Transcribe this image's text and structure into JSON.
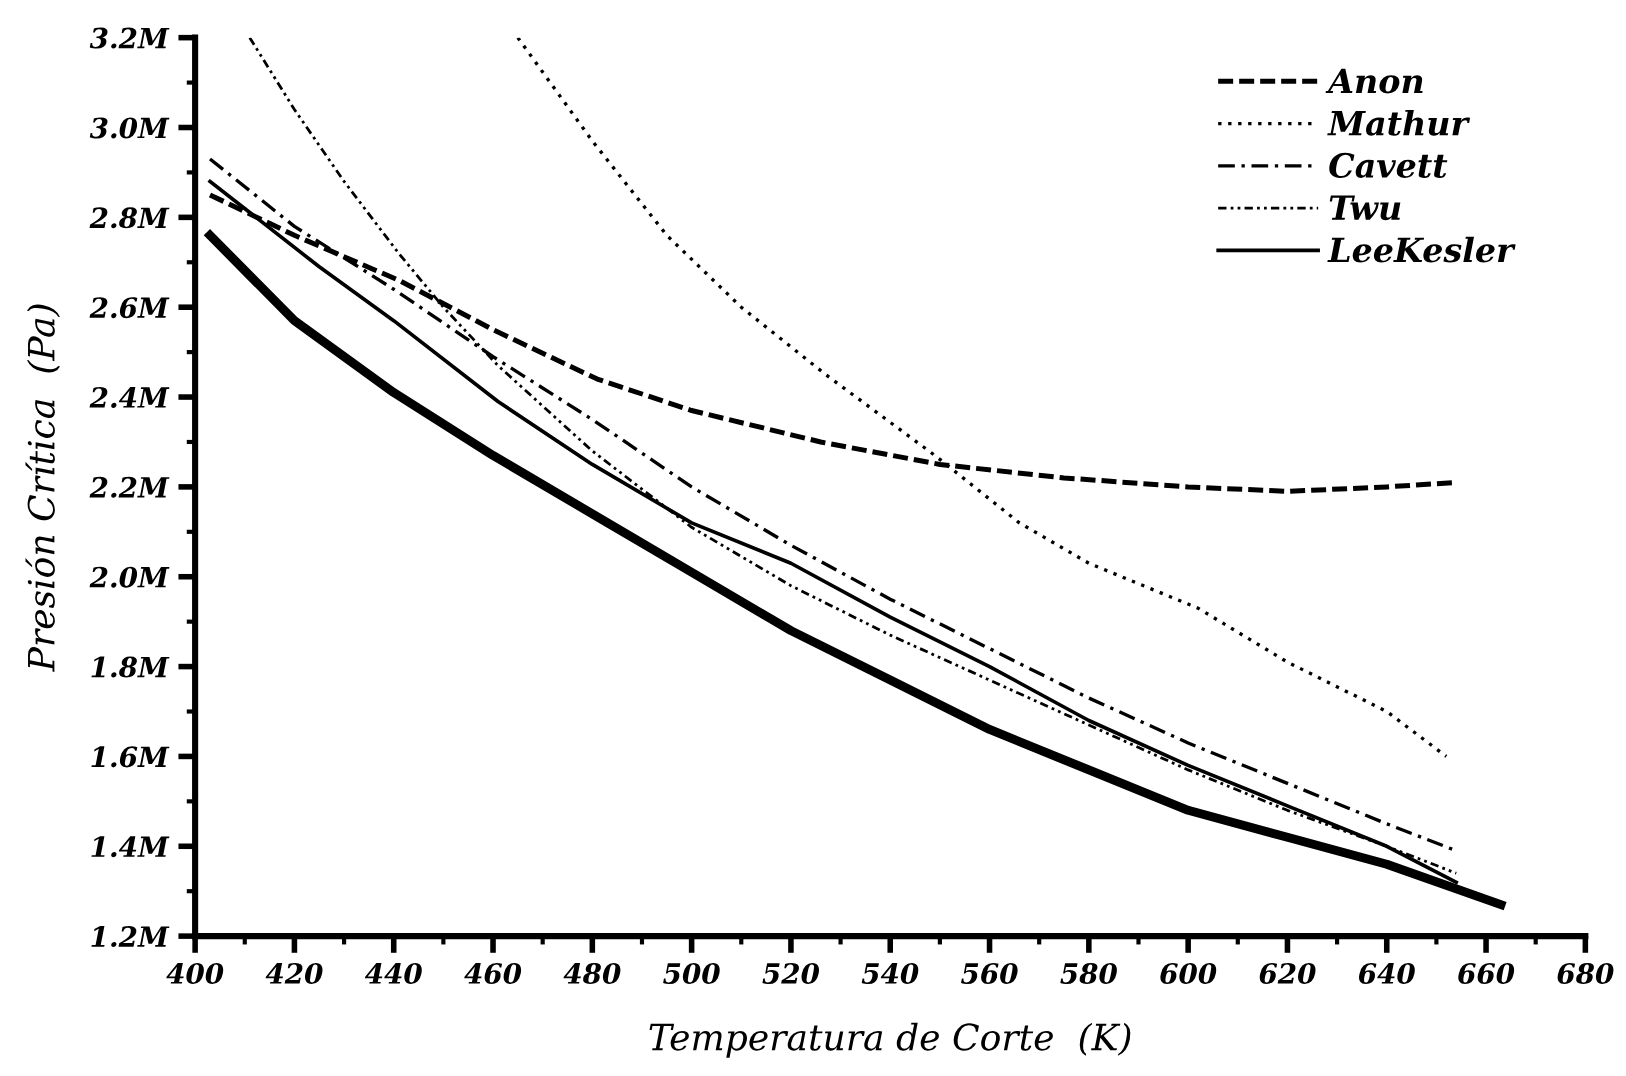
{
  "chart_data": {
    "type": "line",
    "xlabel": "Temperatura de Corte  (K)",
    "ylabel": "Presión Crítica  (Pa)",
    "xlim": [
      400,
      680
    ],
    "ylim": [
      1200000,
      3200000
    ],
    "xticks": [
      400,
      {
        "value": 410,
        "label": null
      },
      420,
      {
        "value": 430,
        "label": null
      },
      440,
      {
        "value": 450,
        "label": null
      },
      460,
      {
        "value": 470,
        "label": null
      },
      480,
      {
        "value": 490,
        "label": null
      },
      500,
      {
        "value": 510,
        "label": null
      },
      520,
      {
        "value": 530,
        "label": null
      },
      540,
      {
        "value": 550,
        "label": null
      },
      560,
      {
        "value": 570,
        "label": null
      },
      580,
      {
        "value": 590,
        "label": null
      },
      600,
      {
        "value": 610,
        "label": null
      },
      620,
      {
        "value": 630,
        "label": null
      },
      640,
      {
        "value": 650,
        "label": null
      },
      660,
      {
        "value": 670,
        "label": null
      },
      680
    ],
    "yticks": [
      {
        "value": 1200000,
        "label": "1.2M"
      },
      {
        "value": 1300000,
        "label": null
      },
      {
        "value": 1400000,
        "label": "1.4M"
      },
      {
        "value": 1500000,
        "label": null
      },
      {
        "value": 1600000,
        "label": "1.6M"
      },
      {
        "value": 1700000,
        "label": null
      },
      {
        "value": 1800000,
        "label": "1.8M"
      },
      {
        "value": 1900000,
        "label": null
      },
      {
        "value": 2000000,
        "label": "2.0M"
      },
      {
        "value": 2100000,
        "label": null
      },
      {
        "value": 2200000,
        "label": "2.2M"
      },
      {
        "value": 2300000,
        "label": null
      },
      {
        "value": 2400000,
        "label": "2.4M"
      },
      {
        "value": 2500000,
        "label": null
      },
      {
        "value": 2600000,
        "label": "2.6M"
      },
      {
        "value": 2700000,
        "label": null
      },
      {
        "value": 2800000,
        "label": "2.8M"
      },
      {
        "value": 2900000,
        "label": null
      },
      {
        "value": 3000000,
        "label": "3.0M"
      },
      {
        "value": 3100000,
        "label": null
      },
      {
        "value": 3200000,
        "label": "3.2M"
      }
    ],
    "grid": false,
    "legend": "top right",
    "marker": "none",
    "series": [
      {
        "color": "#000000",
        "line_style": "solid",
        "x": [
          403,
          420,
          440,
          460,
          480,
          500,
          520,
          540,
          560,
          580,
          600,
          620,
          640,
          663
        ],
        "values": [
          2760000,
          2570000,
          2410000,
          2270000,
          2140000,
          2010000,
          1880000,
          1770000,
          1660000,
          1570000,
          1480000,
          1420000,
          1360000,
          1270000
        ]
      },
      {
        "name": "Anon",
        "color": "#000000",
        "line_style": "dashed",
        "x": [
          403,
          420,
          441,
          460,
          481,
          500,
          526,
          550,
          575,
          600,
          620,
          640,
          654
        ],
        "values": [
          2850000,
          2760000,
          2660000,
          2550000,
          2440000,
          2370000,
          2300000,
          2250000,
          2220000,
          2200000,
          2190000,
          2200000,
          2210000
        ]
      },
      {
        "name": "Mathur",
        "color": "#000000",
        "line_style": "dotted",
        "x": [
          465,
          480,
          495,
          510,
          527,
          549,
          566,
          580,
          602,
          620,
          640,
          652
        ],
        "values": [
          3200000,
          2970000,
          2760000,
          2600000,
          2450000,
          2270000,
          2120000,
          2030000,
          1930000,
          1810000,
          1700000,
          1600000
        ]
      },
      {
        "name": "Cavett",
        "color": "#000000",
        "line_style": "dashdot",
        "x": [
          403,
          420,
          440,
          460,
          480,
          500,
          520,
          540,
          560,
          580,
          600,
          620,
          640,
          654
        ],
        "values": [
          2930000,
          2780000,
          2640000,
          2490000,
          2350000,
          2200000,
          2070000,
          1950000,
          1840000,
          1730000,
          1630000,
          1540000,
          1450000,
          1390000
        ]
      },
      {
        "name": "Twu",
        "color": "#000000",
        "line_style": "dashdotdot",
        "x": [
          411,
          420,
          430,
          441,
          450,
          461,
          480,
          500,
          520,
          540,
          560,
          580,
          600,
          620,
          640,
          654
        ],
        "values": [
          3200000,
          3040000,
          2880000,
          2720000,
          2600000,
          2470000,
          2280000,
          2110000,
          1980000,
          1870000,
          1770000,
          1670000,
          1570000,
          1480000,
          1400000,
          1340000
        ]
      },
      {
        "name": "LeeKesler",
        "color": "#000000",
        "line_style": "solid",
        "x": [
          403,
          425,
          440,
          461,
          480,
          500,
          520,
          540,
          560,
          580,
          600,
          620,
          640,
          654
        ],
        "values": [
          2880000,
          2690000,
          2570000,
          2390000,
          2250000,
          2120000,
          2030000,
          1910000,
          1800000,
          1680000,
          1580000,
          1490000,
          1400000,
          1320000
        ]
      }
    ]
  }
}
